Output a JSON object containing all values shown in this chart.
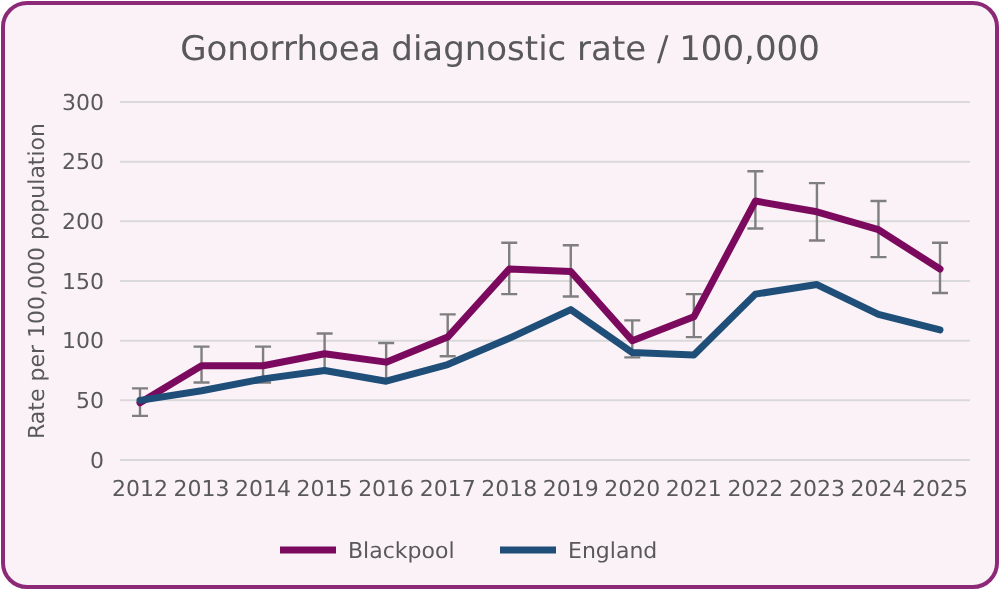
{
  "chart_data": {
    "type": "line",
    "title": "Gonorrhoea diagnostic rate / 100,000",
    "ylabel": "Rate per 100,000 population",
    "categories": [
      "2012",
      "2013",
      "2014",
      "2015",
      "2016",
      "2017",
      "2018",
      "2019",
      "2020",
      "2021",
      "2022",
      "2023",
      "2024",
      "2025"
    ],
    "series": [
      {
        "name": "Blackpool",
        "color": "#7b0a5e",
        "values": [
          48,
          79,
          79,
          89,
          82,
          103,
          160,
          158,
          100,
          120,
          217,
          208,
          193,
          160
        ],
        "errors": [
          [
            37,
            60
          ],
          [
            65,
            95
          ],
          [
            65,
            95
          ],
          [
            73,
            106
          ],
          [
            67,
            98
          ],
          [
            87,
            122
          ],
          [
            139,
            182
          ],
          [
            137,
            180
          ],
          [
            86,
            117
          ],
          [
            103,
            139
          ],
          [
            194,
            242
          ],
          [
            184,
            232
          ],
          [
            170,
            217
          ],
          [
            140,
            182
          ]
        ]
      },
      {
        "name": "England",
        "color": "#1f4e79",
        "values": [
          50,
          58,
          68,
          75,
          66,
          80,
          102,
          126,
          90,
          88,
          139,
          147,
          122,
          109
        ]
      }
    ],
    "ylim": [
      0,
      300
    ],
    "yticks": [
      0,
      50,
      100,
      150,
      200,
      250,
      300
    ],
    "grid": "y",
    "legend": "bottom",
    "marker": "none",
    "line_style": "solid"
  }
}
